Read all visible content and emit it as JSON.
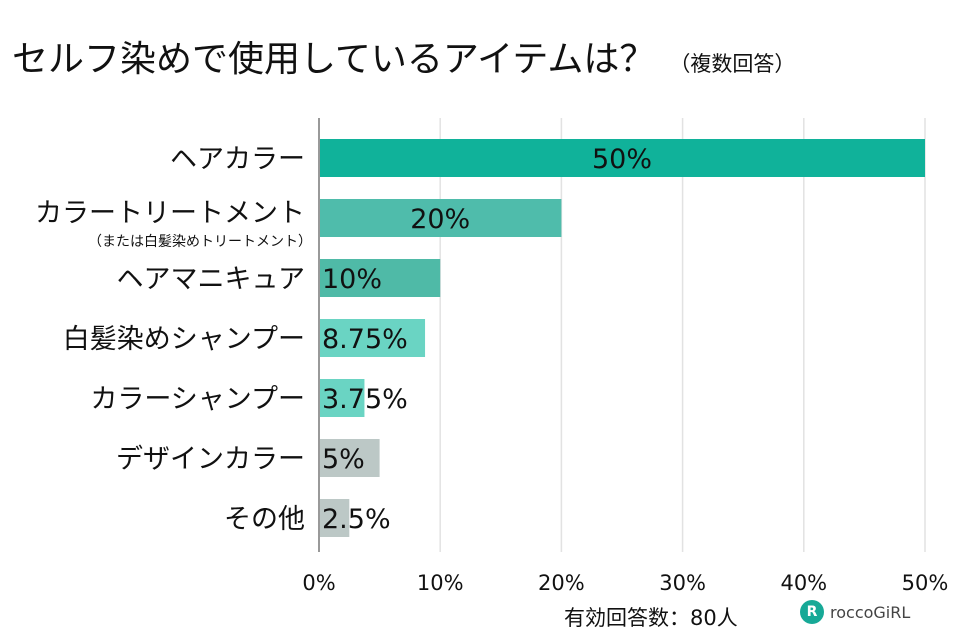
{
  "chart_data": {
    "type": "bar",
    "orientation": "horizontal",
    "title": "セルフ染めで使用しているアイテムは？",
    "subtitle": "（複数回答）",
    "categories": [
      "ヘアカラー",
      "カラートリートメント",
      "ヘアマニキュア",
      "白髪染めシャンプー",
      "カラーシャンプー",
      "デザインカラー",
      "その他"
    ],
    "category_notes": [
      "",
      "（または白髪染めトリートメント）",
      "",
      "",
      "",
      "",
      ""
    ],
    "values": [
      50,
      20,
      10,
      8.75,
      3.75,
      5,
      2.5
    ],
    "data_labels": [
      "50%",
      "20%",
      "10%",
      "8.75%",
      "3.75%",
      "5%",
      "2.5%"
    ],
    "colors": [
      "#10b29a",
      "#4fbcab",
      "#4fbaa7",
      "#6ad4c3",
      "#6ad4c3",
      "#bcc8c6",
      "#bcc8c6"
    ],
    "xlim": [
      0,
      50
    ],
    "xticks": [
      "0%",
      "10%",
      "20%",
      "30%",
      "40%",
      "50%"
    ],
    "xtick_values": [
      0,
      10,
      20,
      30,
      40,
      50
    ],
    "grid": true
  },
  "footer": {
    "note": "有効回答数：80人",
    "logo": "roccoGiRL"
  }
}
